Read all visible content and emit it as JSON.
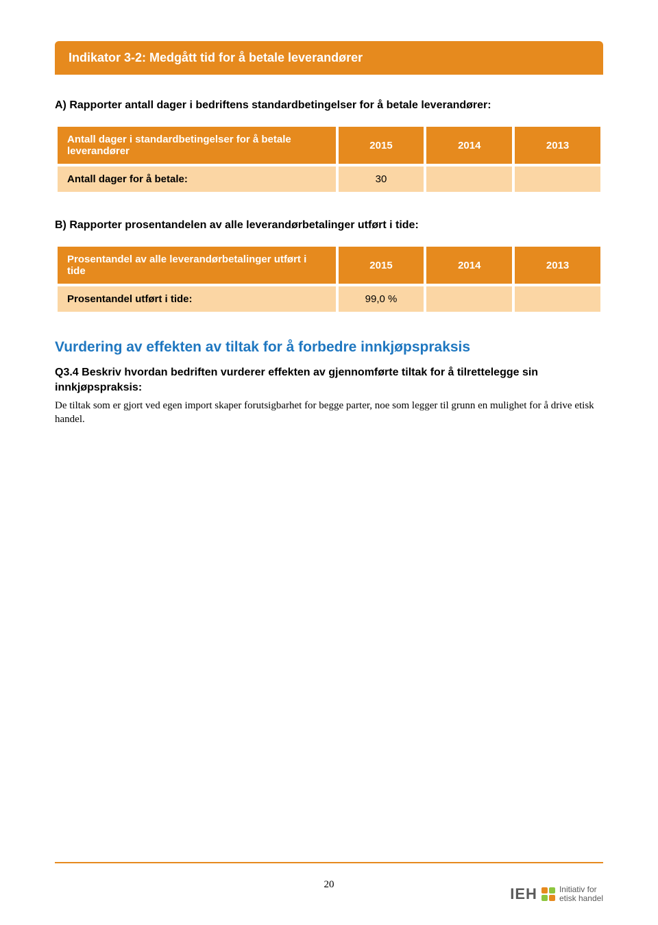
{
  "banner": {
    "title": "Indikator 3-2: Medgått tid for å betale leverandører"
  },
  "sectionA": {
    "heading": "A) Rapporter antall dager i bedriftens standardbetingelser for å betale leverandører:",
    "header_label": "Antall dager i standardbetingelser for å betale leverandører",
    "years": [
      "2015",
      "2014",
      "2013"
    ],
    "row_label": "Antall dager for å betale:",
    "row_values": [
      "30",
      "",
      ""
    ]
  },
  "sectionB": {
    "heading": "B) Rapporter prosentandelen av alle leverandørbetalinger utført i tide:",
    "header_label": "Prosentandel av alle leverandørbetalinger utført i tide",
    "years": [
      "2015",
      "2014",
      "2013"
    ],
    "row_label": "Prosentandel utført i tide:",
    "row_values": [
      "99,0 %",
      "",
      ""
    ]
  },
  "assessment": {
    "title": "Vurdering av effekten av tiltak for å forbedre innkjøpspraksis",
    "q_label": "Q3.4 Beskriv hvordan bedriften vurderer effekten av gjennomførte tiltak for å tilrettelegge sin innkjøpspraksis:",
    "body": "De tiltak som er gjort ved egen import skaper forutsigbarhet for begge parter, noe som legger til grunn en mulighet for å drive etisk handel."
  },
  "footer": {
    "page": "20",
    "logo_text": "IEH",
    "logo_sub1": "Initiativ for",
    "logo_sub2": "etisk handel"
  },
  "colors": {
    "orange": "#e68a1e",
    "light_orange": "#fbd6a4",
    "blue": "#1f77c0"
  }
}
